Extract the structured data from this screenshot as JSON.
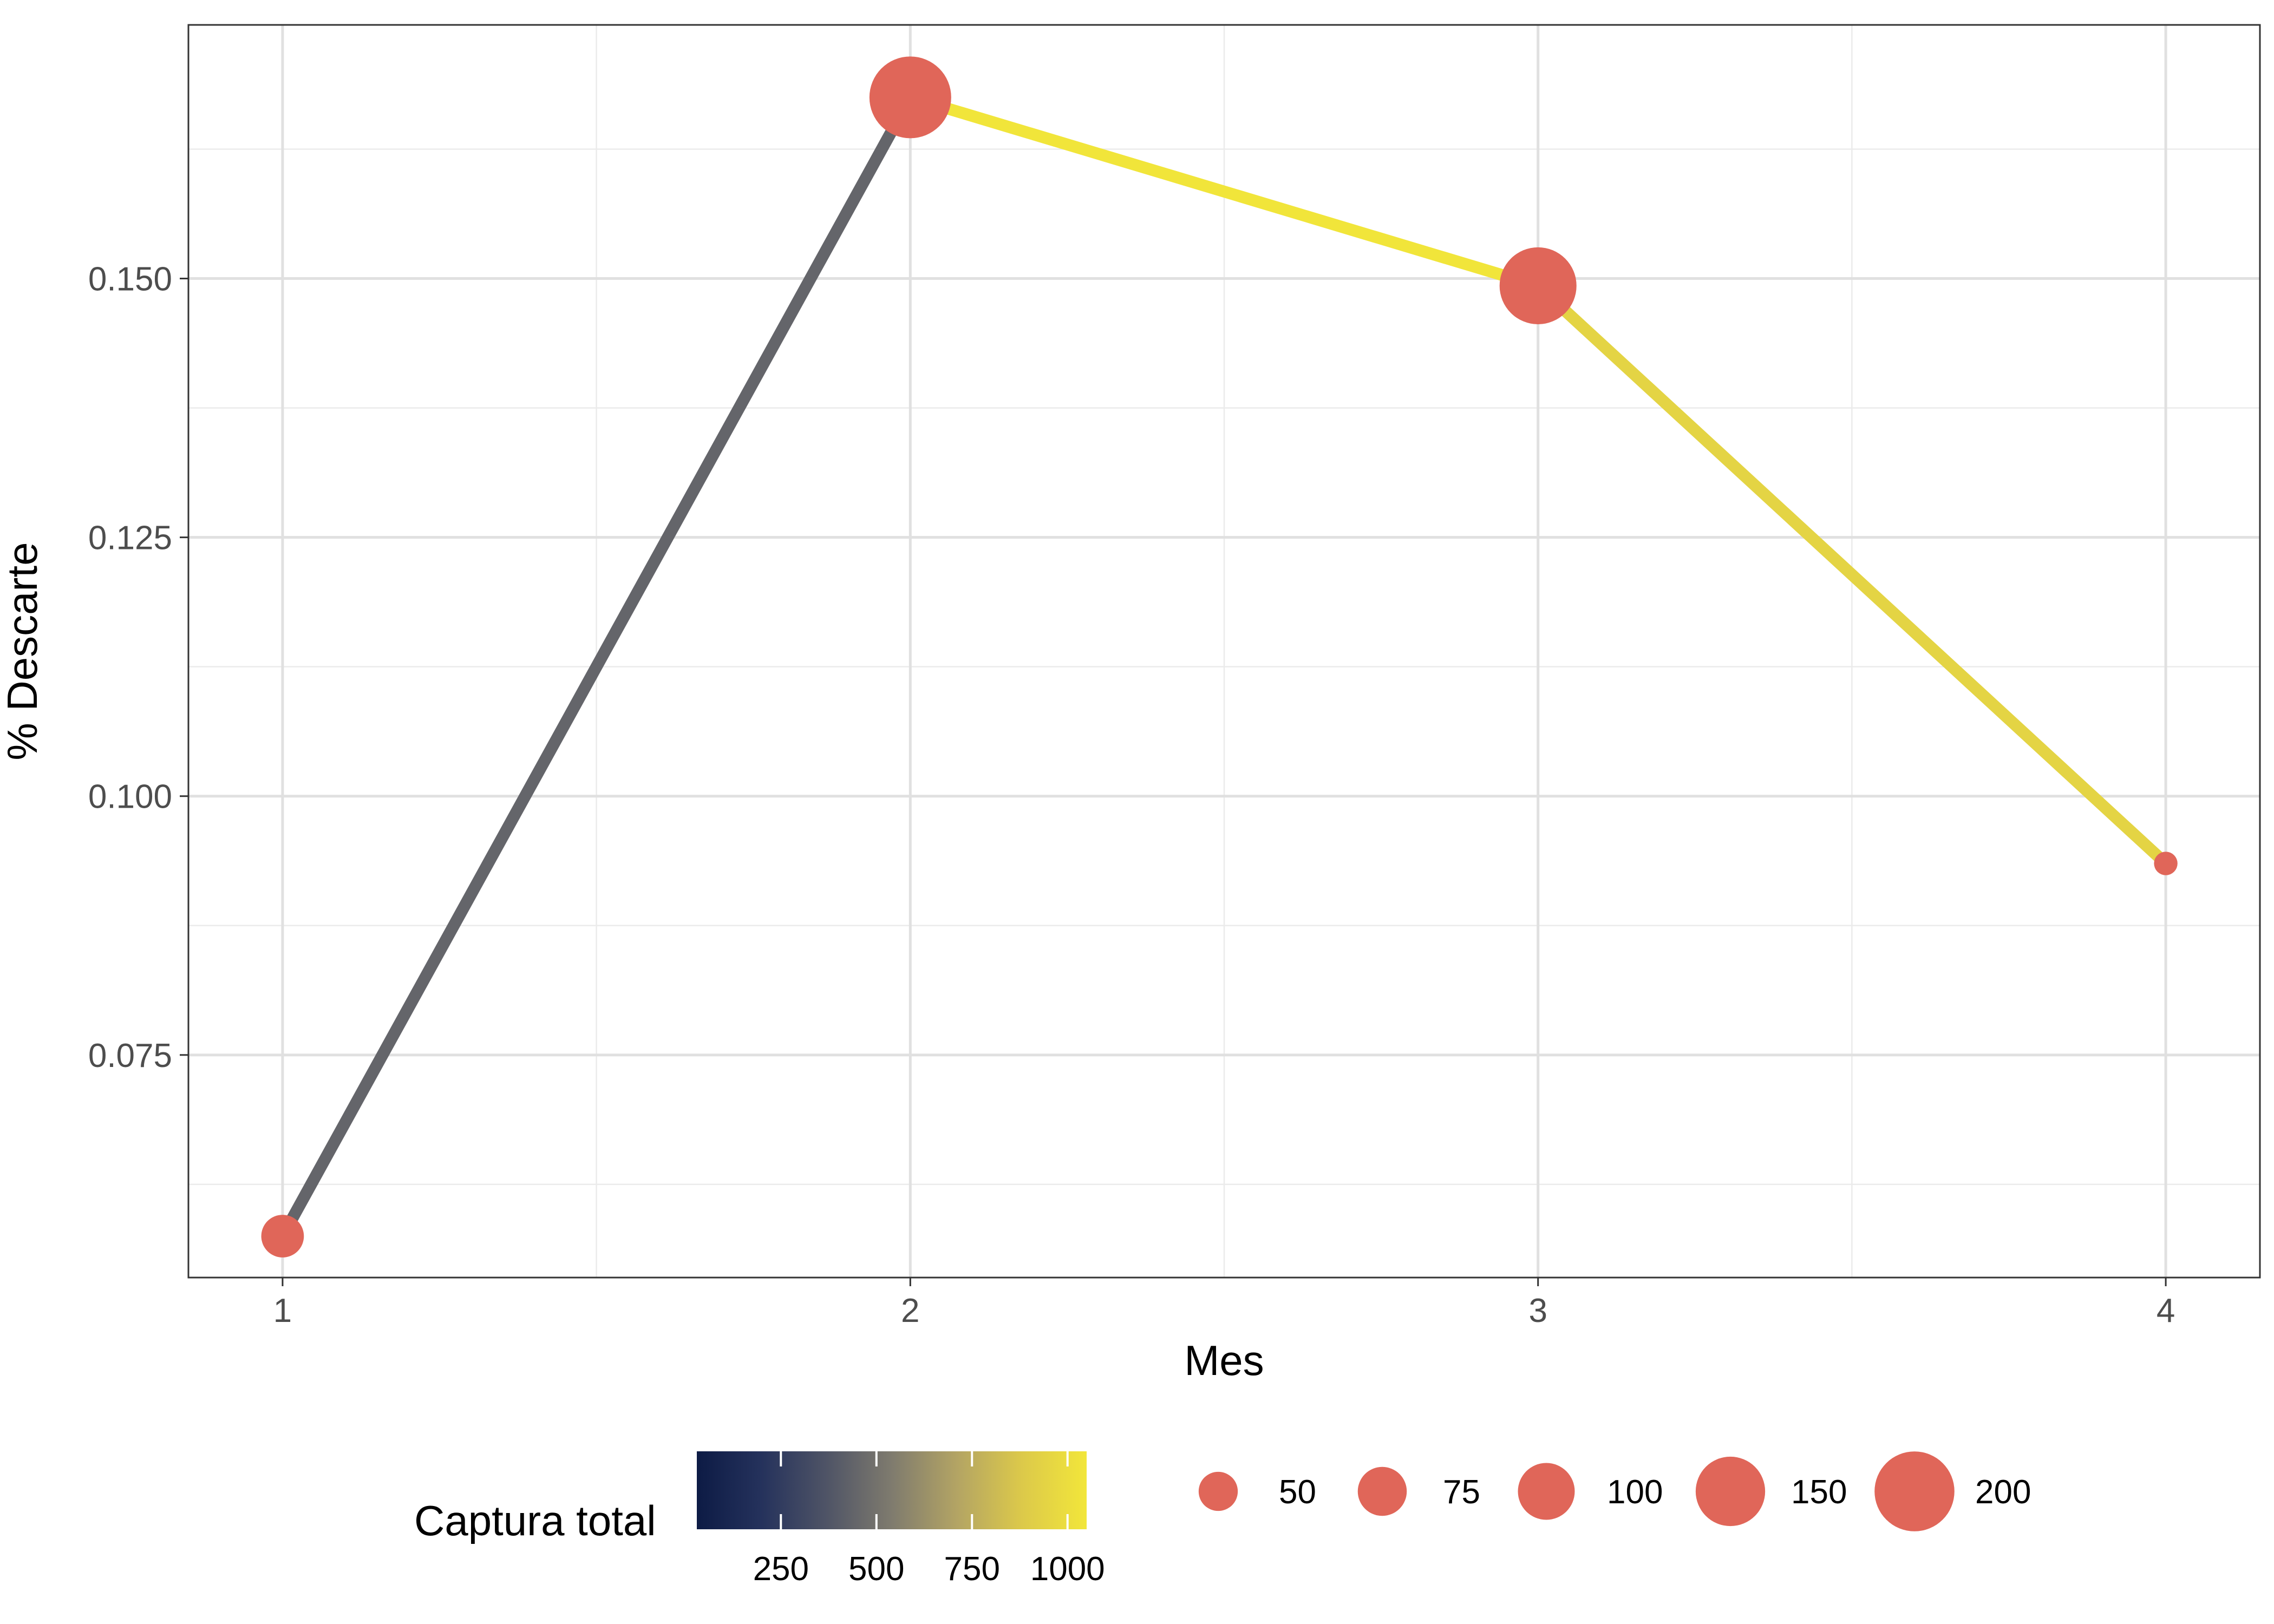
{
  "chart_data": {
    "type": "line",
    "x": [
      1,
      2,
      3,
      4
    ],
    "y": [
      0.0575,
      0.1675,
      0.1493,
      0.0935
    ],
    "point_size_values": [
      58,
      210,
      185,
      25
    ],
    "segment_color_values": [
      445,
      1045,
      945,
      785
    ],
    "xlabel": "Mes",
    "ylabel": "% Descarte",
    "xlim": [
      0.85,
      4.15
    ],
    "ylim": [
      0.0535,
      0.1745
    ],
    "x_ticks": [
      1,
      2,
      3,
      4
    ],
    "x_tick_labels": [
      "1",
      "2",
      "3",
      "4"
    ],
    "y_ticks": [
      0.075,
      0.1,
      0.125,
      0.15
    ],
    "y_tick_labels": [
      "0.075",
      "0.100",
      "0.125",
      "0.150"
    ],
    "grid": true,
    "point_color": "#E06659",
    "color_legend": {
      "title": "Captura total",
      "range": [
        30,
        1050
      ],
      "ticks": [
        250,
        500,
        750,
        1000
      ],
      "tick_labels": [
        "250",
        "500",
        "750",
        "1000"
      ],
      "colors": [
        "#0D1B45",
        "#25325C",
        "#4F5466",
        "#7F7B6E",
        "#B3A464",
        "#DCC94A",
        "#F2E63A"
      ]
    },
    "size_legend": {
      "values": [
        50,
        75,
        100,
        150,
        200
      ],
      "labels": [
        "50",
        "75",
        "100",
        "150",
        "200"
      ]
    },
    "legend_position": "bottom"
  }
}
